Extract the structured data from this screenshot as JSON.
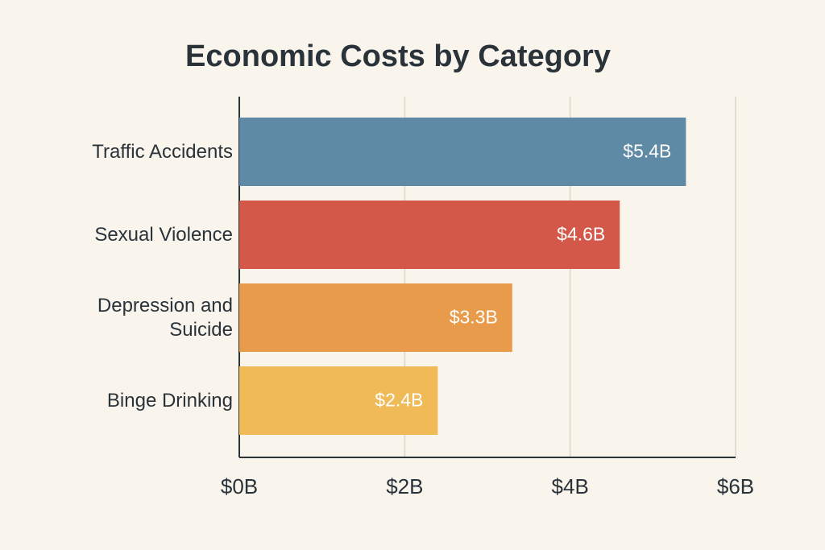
{
  "chart_data": {
    "type": "barh",
    "title": "Economic Costs by Category",
    "categories": [
      "Traffic Accidents",
      "Sexual Violence",
      "Depression and Suicide",
      "Binge Drinking"
    ],
    "values": [
      5.4,
      4.6,
      3.3,
      2.4
    ],
    "value_labels": [
      "$5.4B",
      "$4.6B",
      "$3.3B",
      "$2.4B"
    ],
    "colors": [
      "#5e8aa6",
      "#d4584a",
      "#e99b4c",
      "#f0bb57"
    ],
    "xlim": [
      0,
      6
    ],
    "xticks": [
      {
        "value": 0,
        "label": "$0B"
      },
      {
        "value": 2,
        "label": "$2B"
      },
      {
        "value": 4,
        "label": "$4B"
      },
      {
        "value": 6,
        "label": "$6B"
      }
    ],
    "grid": true
  }
}
